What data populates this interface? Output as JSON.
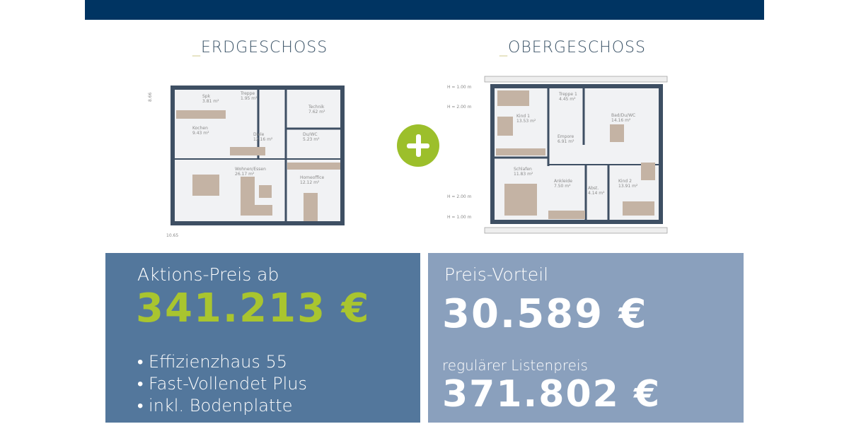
{
  "floors": {
    "ground": {
      "title": "ERDGESCHOSS",
      "rooms": [
        {
          "name": "Spk",
          "area": "3.81 m²"
        },
        {
          "name": "Treppe",
          "area": "1.95 m²"
        },
        {
          "name": "Technik",
          "area": "7.62 m²"
        },
        {
          "name": "Kochen",
          "area": "9.43 m²"
        },
        {
          "name": "Diele",
          "area": "12.16 m²"
        },
        {
          "name": "Du/WC",
          "area": "5.23 m²"
        },
        {
          "name": "Wohnen/Essen",
          "area": "26.17 m²"
        },
        {
          "name": "Homeoffice",
          "area": "12.12 m²"
        }
      ],
      "dim_width": "10.65",
      "dim_depth": "8.66"
    },
    "upper": {
      "title": "OBERGESCHOSS",
      "rooms": [
        {
          "name": "Treppe 1",
          "area": "4.45 m²"
        },
        {
          "name": "Kind 1",
          "area": "13.53 m²"
        },
        {
          "name": "Bad/Du/WC",
          "area": "14.16 m²"
        },
        {
          "name": "Empore",
          "area": "6.91 m²"
        },
        {
          "name": "Schlafen",
          "area": "11.83 m²"
        },
        {
          "name": "Ankleide",
          "area": "7.50 m²"
        },
        {
          "name": "Abst.",
          "area": "4.14 m²"
        },
        {
          "name": "Kind 2",
          "area": "13.91 m²"
        }
      ],
      "heights": [
        "H = 1.00 m",
        "H = 2.00 m",
        "H = 2.00 m",
        "H = 1.00 m"
      ]
    }
  },
  "price": {
    "action_label": "Aktions-Preis ab",
    "action_price": "341.213 €",
    "features": [
      "• Effizienzhaus 55",
      "• Fast-Vollendet Plus",
      "• inkl. Bodenplatte"
    ],
    "advantage_label": "Preis-Vorteil",
    "advantage_value": "30.589 €",
    "list_label": "regulärer Listenpreis",
    "list_price": "371.802  €"
  },
  "colors": {
    "banner": "#003462",
    "accent_green": "#a9c52f",
    "box_left": "#53779c",
    "box_right": "#8aa0bd"
  }
}
